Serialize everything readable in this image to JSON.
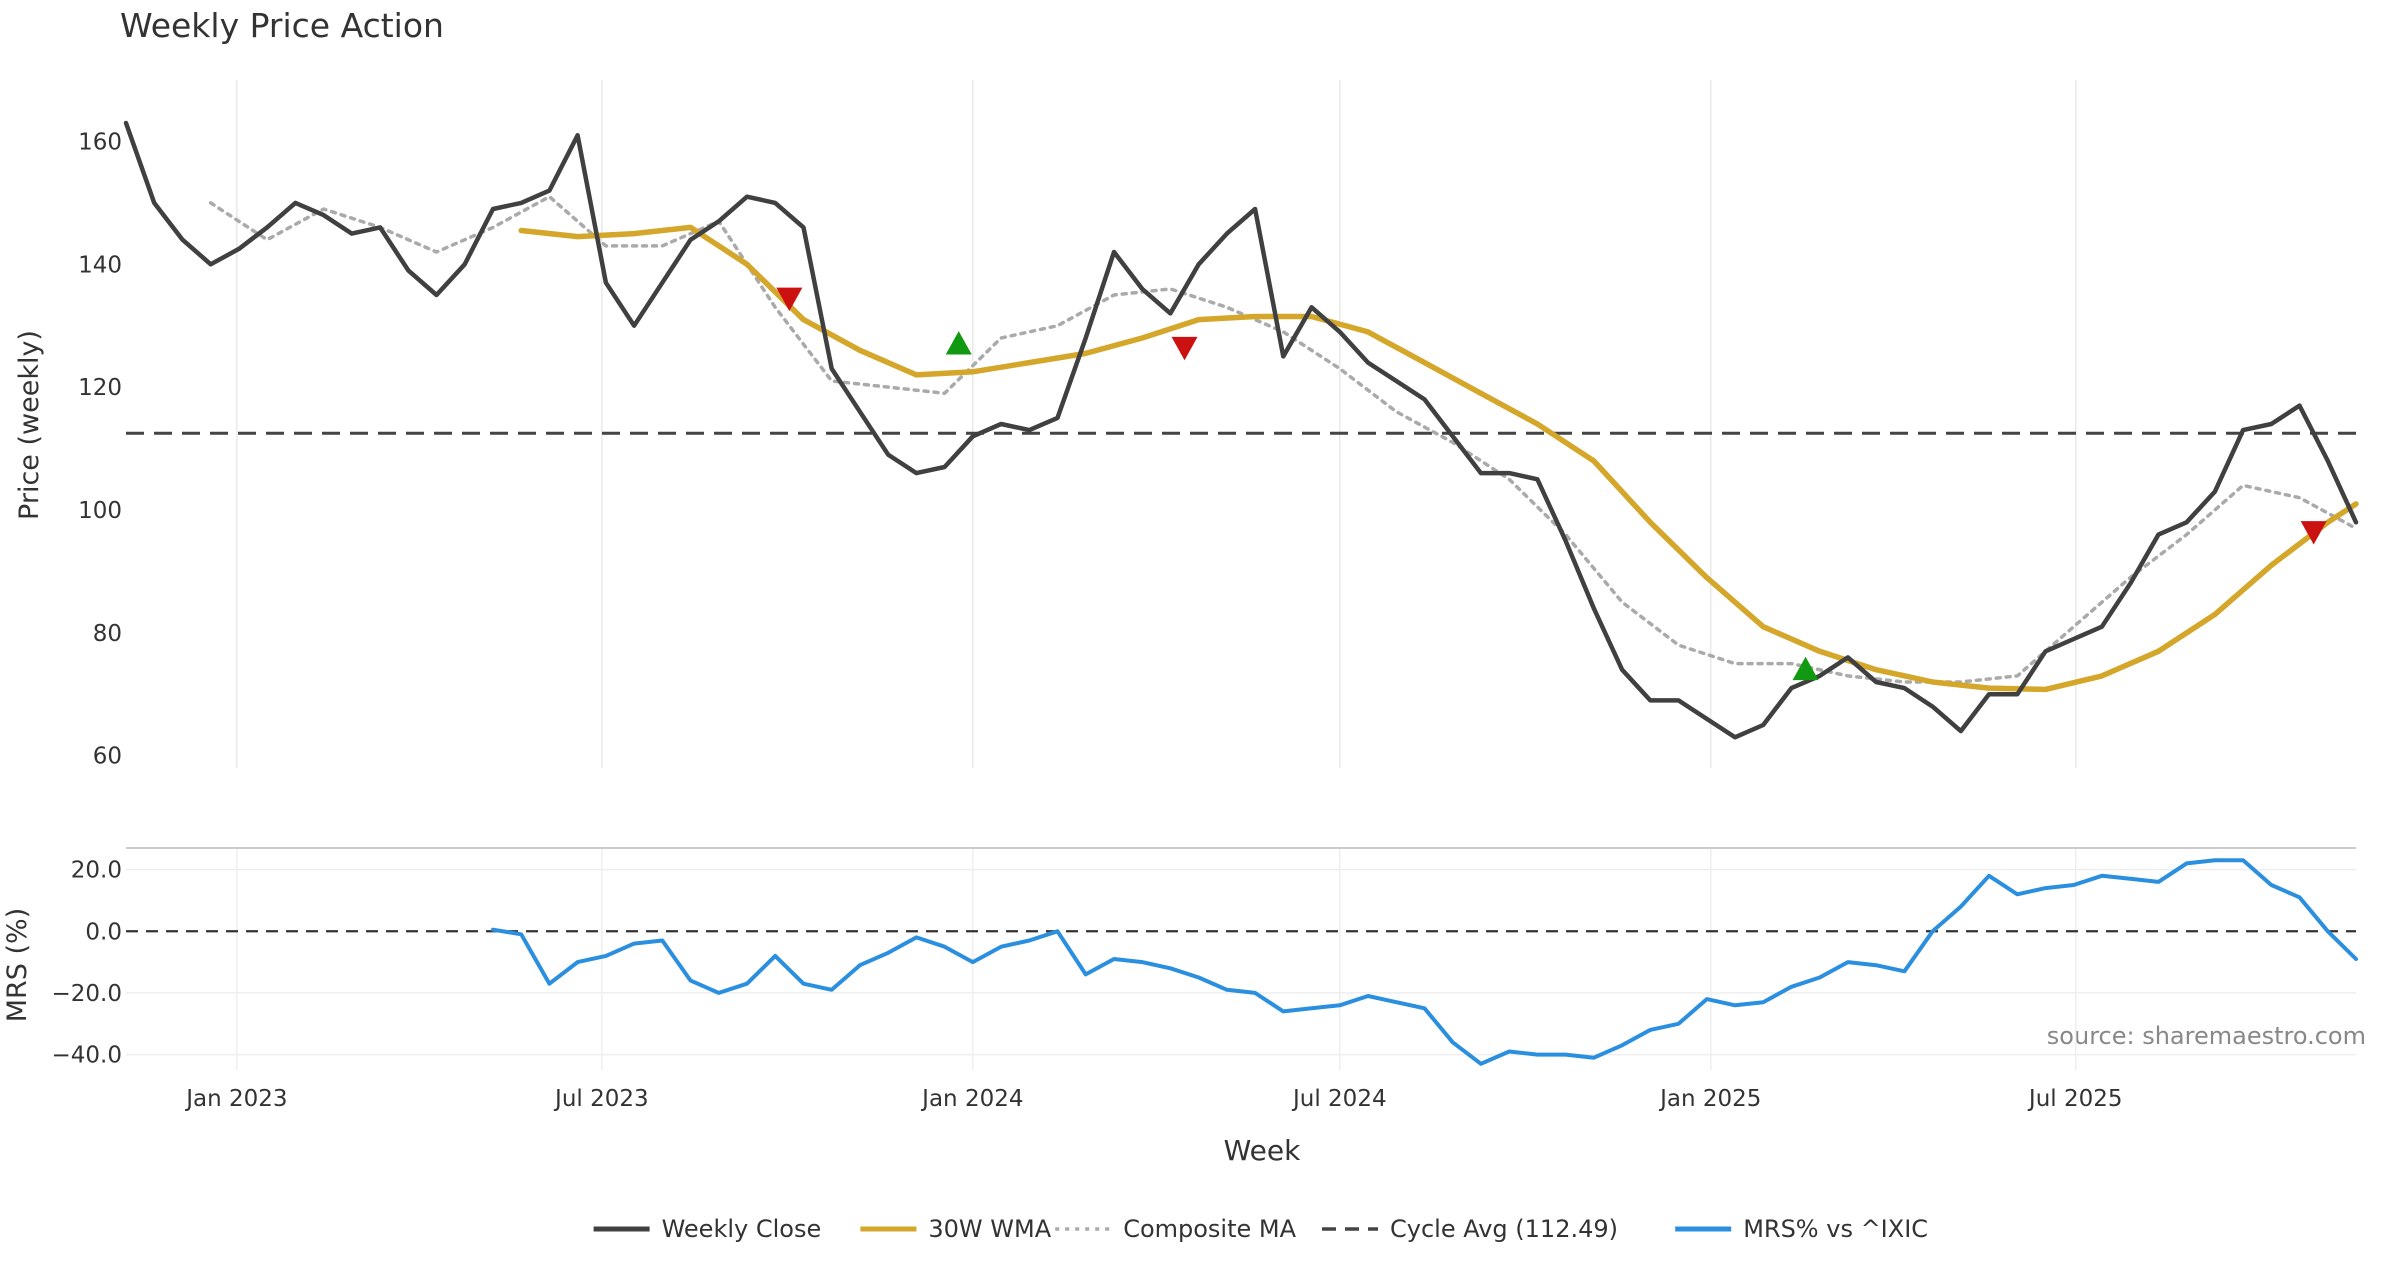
{
  "chart_data": [
    {
      "type": "line",
      "title": "Weekly Price Action",
      "ylabel": "Price (weekly)",
      "ylim": [
        58,
        170
      ],
      "yticks": [
        60,
        80,
        100,
        120,
        140,
        160
      ],
      "xlim": [
        "2022-11-07",
        "2025-11-17"
      ],
      "grid": "vertical",
      "reference_line": {
        "name": "Cycle Avg (112.49)",
        "value": 112.49,
        "style": "dashed",
        "color": "#444444"
      },
      "series": [
        {
          "name": "Weekly Close",
          "color": "#404040",
          "style": "solid",
          "x": [
            "2022-11-07",
            "2022-11-21",
            "2022-12-05",
            "2022-12-19",
            "2023-01-02",
            "2023-01-16",
            "2023-01-30",
            "2023-02-13",
            "2023-02-27",
            "2023-03-13",
            "2023-03-27",
            "2023-04-10",
            "2023-04-24",
            "2023-05-08",
            "2023-05-22",
            "2023-06-05",
            "2023-06-19",
            "2023-07-03",
            "2023-07-17",
            "2023-07-31",
            "2023-08-14",
            "2023-08-28",
            "2023-09-11",
            "2023-09-25",
            "2023-10-09",
            "2023-10-23",
            "2023-11-06",
            "2023-11-20",
            "2023-12-04",
            "2023-12-18",
            "2024-01-01",
            "2024-01-15",
            "2024-01-29",
            "2024-02-12",
            "2024-02-26",
            "2024-03-11",
            "2024-03-25",
            "2024-04-08",
            "2024-04-22",
            "2024-05-06",
            "2024-05-20",
            "2024-06-03",
            "2024-06-17",
            "2024-07-01",
            "2024-07-15",
            "2024-07-29",
            "2024-08-12",
            "2024-08-26",
            "2024-09-09",
            "2024-09-23",
            "2024-10-07",
            "2024-10-21",
            "2024-11-04",
            "2024-11-18",
            "2024-12-02",
            "2024-12-16",
            "2024-12-30",
            "2025-01-13",
            "2025-01-27",
            "2025-02-10",
            "2025-02-24",
            "2025-03-10",
            "2025-03-24",
            "2025-04-07",
            "2025-04-21",
            "2025-05-05",
            "2025-05-19",
            "2025-06-02",
            "2025-06-16",
            "2025-06-30",
            "2025-07-14",
            "2025-07-28",
            "2025-08-11",
            "2025-08-25",
            "2025-09-08",
            "2025-09-22",
            "2025-10-06",
            "2025-10-20",
            "2025-11-03",
            "2025-11-17"
          ],
          "values": [
            163,
            150,
            144,
            140,
            142.5,
            146,
            150,
            148,
            145,
            146,
            139,
            135,
            140,
            149,
            150,
            152,
            161,
            137,
            130,
            137,
            144,
            147,
            151,
            150,
            146,
            123,
            116,
            109,
            106,
            107,
            112,
            114,
            113,
            115,
            128,
            142,
            136,
            132,
            140,
            145,
            149,
            125,
            133,
            129,
            124,
            121,
            118,
            112,
            106,
            106,
            105,
            95,
            84,
            74,
            69,
            69,
            66,
            63,
            65,
            71,
            73,
            76,
            72,
            71,
            68,
            64,
            70,
            70,
            77,
            79,
            81,
            88,
            96,
            98,
            103,
            113,
            114,
            117,
            108,
            98
          ]
        },
        {
          "name": "30W WMA",
          "color": "#d4a62a",
          "style": "solid",
          "x": [
            "2023-05-22",
            "2023-06-19",
            "2023-07-17",
            "2023-08-14",
            "2023-09-11",
            "2023-10-09",
            "2023-11-06",
            "2023-12-04",
            "2024-01-01",
            "2024-01-29",
            "2024-02-26",
            "2024-03-25",
            "2024-04-22",
            "2024-05-20",
            "2024-06-17",
            "2024-07-15",
            "2024-08-12",
            "2024-09-09",
            "2024-10-07",
            "2024-11-04",
            "2024-12-02",
            "2024-12-30",
            "2025-01-27",
            "2025-02-24",
            "2025-03-24",
            "2025-04-21",
            "2025-05-19",
            "2025-06-16",
            "2025-07-14",
            "2025-08-11",
            "2025-09-08",
            "2025-10-06",
            "2025-11-03",
            "2025-11-17"
          ],
          "values": [
            145.5,
            144.5,
            145,
            146,
            140,
            131,
            126,
            122,
            122.5,
            124,
            125.5,
            128,
            131,
            131.5,
            131.5,
            129,
            124,
            119,
            114,
            108,
            98,
            89,
            81,
            77,
            74,
            72,
            71,
            70.8,
            73,
            77,
            83,
            91,
            98,
            101
          ]
        },
        {
          "name": "Composite MA",
          "color": "#aaaaaa",
          "style": "dotted",
          "x": [
            "2022-12-19",
            "2023-01-16",
            "2023-02-13",
            "2023-03-13",
            "2023-04-10",
            "2023-05-08",
            "2023-06-05",
            "2023-07-03",
            "2023-07-31",
            "2023-08-28",
            "2023-09-25",
            "2023-10-23",
            "2023-11-20",
            "2023-12-18",
            "2024-01-15",
            "2024-02-12",
            "2024-03-11",
            "2024-04-08",
            "2024-05-06",
            "2024-06-03",
            "2024-07-01",
            "2024-07-29",
            "2024-08-26",
            "2024-09-23",
            "2024-10-21",
            "2024-11-18",
            "2024-12-16",
            "2025-01-13",
            "2025-02-10",
            "2025-03-10",
            "2025-04-07",
            "2025-05-05",
            "2025-06-02",
            "2025-06-30",
            "2025-07-28",
            "2025-08-25",
            "2025-09-22",
            "2025-10-20",
            "2025-11-17"
          ],
          "values": [
            150,
            144,
            149,
            146,
            142,
            146,
            151,
            143,
            143,
            147,
            133,
            121,
            120,
            119,
            128,
            130,
            135,
            136,
            133,
            129,
            123,
            116,
            111,
            105,
            96,
            85,
            78,
            75,
            75,
            73,
            72,
            72,
            73,
            81,
            89,
            96,
            104,
            102,
            97
          ]
        }
      ],
      "markers": [
        {
          "type": "sell",
          "shape": "down-triangle",
          "color": "#cc1111",
          "x": "2023-10-02",
          "y": 134.5
        },
        {
          "type": "buy",
          "shape": "up-triangle",
          "color": "#119911",
          "x": "2023-12-25",
          "y": 127
        },
        {
          "type": "sell",
          "shape": "down-triangle",
          "color": "#cc1111",
          "x": "2024-04-15",
          "y": 126.5
        },
        {
          "type": "buy",
          "shape": "up-triangle",
          "color": "#119911",
          "x": "2025-02-17",
          "y": 74
        },
        {
          "type": "sell",
          "shape": "down-triangle",
          "color": "#cc1111",
          "x": "2025-10-27",
          "y": 96.5
        }
      ],
      "annotation": {
        "source": "source: sharemaestro.com"
      }
    },
    {
      "type": "line",
      "title": "",
      "ylabel": "MRS (%)",
      "xlabel": "Week",
      "ylim": [
        -45,
        27
      ],
      "yticks": [
        -40,
        -20,
        0,
        20
      ],
      "ytick_labels": [
        "−40.0",
        "−20.0",
        "0.0",
        "20.0"
      ],
      "xticks": [
        "2023-01-01",
        "2023-07-01",
        "2024-01-01",
        "2024-07-01",
        "2025-01-01",
        "2025-07-01"
      ],
      "xtick_labels": [
        "Jan 2023",
        "Jul 2023",
        "Jan 2024",
        "Jul 2024",
        "Jan 2025",
        "Jul 2025"
      ],
      "reference_line": {
        "value": 0,
        "style": "dashed",
        "color": "#333333"
      },
      "series": [
        {
          "name": "MRS% vs ^IXIC",
          "color": "#2b8fe0",
          "style": "solid",
          "x": [
            "2023-05-08",
            "2023-05-22",
            "2023-06-05",
            "2023-06-19",
            "2023-07-03",
            "2023-07-17",
            "2023-07-31",
            "2023-08-14",
            "2023-08-28",
            "2023-09-11",
            "2023-09-25",
            "2023-10-09",
            "2023-10-23",
            "2023-11-06",
            "2023-11-20",
            "2023-12-04",
            "2023-12-18",
            "2024-01-01",
            "2024-01-15",
            "2024-01-29",
            "2024-02-12",
            "2024-02-26",
            "2024-03-11",
            "2024-03-25",
            "2024-04-08",
            "2024-04-22",
            "2024-05-06",
            "2024-05-20",
            "2024-06-03",
            "2024-06-17",
            "2024-07-01",
            "2024-07-15",
            "2024-07-29",
            "2024-08-12",
            "2024-08-26",
            "2024-09-09",
            "2024-09-23",
            "2024-10-07",
            "2024-10-21",
            "2024-11-04",
            "2024-11-18",
            "2024-12-02",
            "2024-12-16",
            "2024-12-30",
            "2025-01-13",
            "2025-01-27",
            "2025-02-10",
            "2025-02-24",
            "2025-03-10",
            "2025-03-24",
            "2025-04-07",
            "2025-04-21",
            "2025-05-05",
            "2025-05-19",
            "2025-06-02",
            "2025-06-16",
            "2025-06-30",
            "2025-07-14",
            "2025-07-28",
            "2025-08-11",
            "2025-08-25",
            "2025-09-08",
            "2025-09-22",
            "2025-10-06",
            "2025-10-20",
            "2025-11-03",
            "2025-11-17"
          ],
          "values": [
            0.5,
            -1,
            -17,
            -10,
            -8,
            -4,
            -3,
            -16,
            -20,
            -17,
            -8,
            -17,
            -19,
            -11,
            -7,
            -2,
            -5,
            -10,
            -5,
            -3,
            0,
            -14,
            -9,
            -10,
            -12,
            -15,
            -19,
            -20,
            -26,
            -25,
            -24,
            -21,
            -23,
            -25,
            -36,
            -43,
            -39,
            -40,
            -40,
            -41,
            -37,
            -32,
            -30,
            -22,
            -24,
            -23,
            -18,
            -15,
            -10,
            -11,
            -13,
            0,
            8,
            18,
            12,
            14,
            15,
            18,
            17,
            16,
            22,
            23,
            23,
            15,
            11,
            0,
            -9
          ]
        }
      ]
    }
  ],
  "legend": {
    "placement": "bottom-center",
    "items": [
      {
        "label": "Weekly Close",
        "color": "#404040",
        "style": "solid"
      },
      {
        "label": "30W WMA",
        "color": "#d4a62a",
        "style": "solid"
      },
      {
        "label": "Composite MA",
        "color": "#aaaaaa",
        "style": "dotted"
      },
      {
        "label": "Cycle Avg (112.49)",
        "color": "#444444",
        "style": "dashed"
      },
      {
        "label": "MRS% vs ^IXIC",
        "color": "#2b8fe0",
        "style": "solid"
      }
    ]
  }
}
